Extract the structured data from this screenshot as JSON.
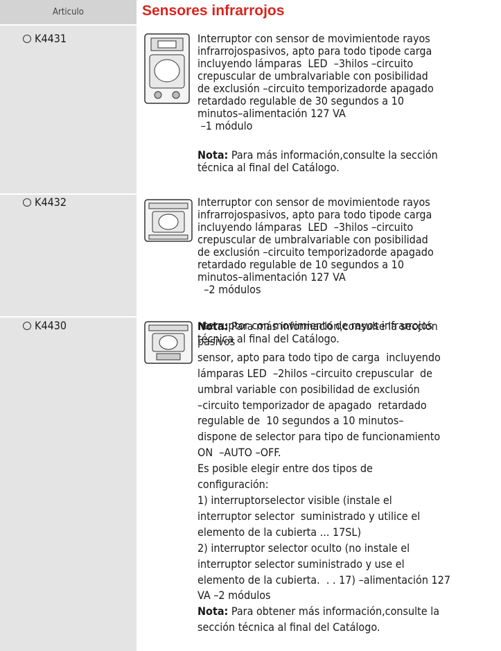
{
  "header": {
    "column": "Articulo",
    "title": "Sensores infrarrojos"
  },
  "items": [
    {
      "code": "K4431",
      "lines": [
        "Interruptor con sensor de movimientode rayos",
        "infrarrojospasivos, apto para todo tipode carga",
        "incluyendo lámparas  LED  –3hilos –circuito",
        "crepuscular de umbralvariable con posibilidad",
        "de exclusión –circuito temporizadorde apagado",
        "retardado regulable de 30 segundos a 10",
        "minutos–alimentación 127 VA",
        " –1 módulo"
      ],
      "note": {
        "label": "Nota:",
        "lines": [
          "Para más información,consulte la sección",
          "técnica al final del Catálogo."
        ]
      }
    },
    {
      "code": "K4432",
      "lines": [
        "Interruptor con sensor de movimientode rayos",
        "infrarrojospasivos, apto para todo tipode carga",
        "incluyendo lámparas  LED  –3hilos –circuito",
        "crepuscular de umbralvariable con posibilidad",
        "de exclusión –circuito temporizadorde apagado",
        "retardado regulable de 10 segundos a 10",
        "minutos–alimentación 127 VA",
        "  –2 módulos"
      ],
      "note": {
        "label": "Nota:",
        "lines": [
          "Para más información,consulte la sección",
          "técnica al final del Catálogo."
        ]
      }
    },
    {
      "code": "K4430",
      "lines": [
        "nterruptor con movimiento de rayos infrarrojos",
        "pasivos",
        "sensor, apto para todo tipo de carga  incluyendo",
        "lámparas LED  –2hilos –circuito crepuscular  de",
        "umbral variable con posibilidad de exclusión",
        "–circuito temporizador de apagado  retardado",
        "regulable de  10 segundos a 10 minutos–",
        "dispone de selector para tipo de funcionamiento",
        "ON  –AUTO –OFF.",
        "Es posible elegir entre dos tipos de",
        "configuración:",
        "1) interruptorselector visible (instale el",
        "interruptor selector  suministrado y utilice el",
        "elemento de la cubierta ... 17SL)",
        "2) interruptor selector oculto (no instale el",
        "interruptor selector suministrado y use el",
        "elemento de la cubierta.  . . 17) –alimentación 127",
        "VA –2 módulos"
      ],
      "note": {
        "label": "Nota:",
        "lines": [
          "Para obtener más información,consulte la",
          "sección técnica al final del Catálogo."
        ]
      }
    }
  ]
}
